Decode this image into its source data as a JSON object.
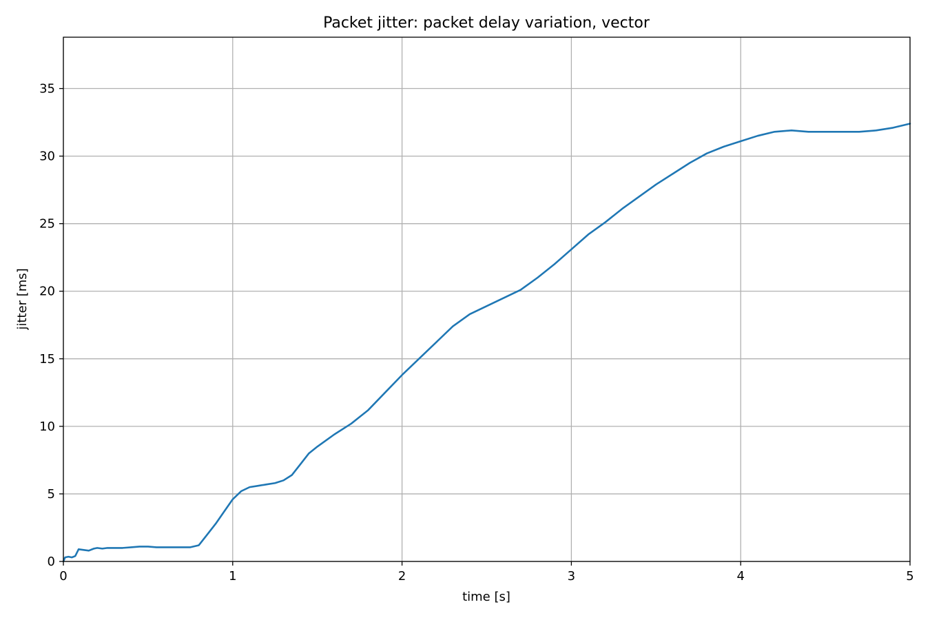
{
  "chart_data": {
    "type": "line",
    "title": "Packet jitter: packet delay variation, vector",
    "xlabel": "time [s]",
    "ylabel": "jitter [ms]",
    "xlim": [
      0,
      5
    ],
    "ylim": [
      0,
      38.8
    ],
    "xticks": [
      0,
      1,
      2,
      3,
      4,
      5
    ],
    "yticks": [
      0,
      5,
      10,
      15,
      20,
      25,
      30,
      35
    ],
    "xtick_labels": [
      "0",
      "1",
      "2",
      "3",
      "4",
      "5"
    ],
    "ytick_labels": [
      "0",
      "5",
      "10",
      "15",
      "20",
      "25",
      "30",
      "35"
    ],
    "grid": true,
    "line_color": "#1f77b4",
    "series": [
      {
        "x": [
          0,
          0.01,
          0.03,
          0.05,
          0.07,
          0.09,
          0.12,
          0.15,
          0.18,
          0.2,
          0.23,
          0.26,
          0.3,
          0.35,
          0.4,
          0.45,
          0.5,
          0.55,
          0.6,
          0.65,
          0.7,
          0.75,
          0.8,
          0.85,
          0.9,
          0.95,
          1.0,
          1.05,
          1.1,
          1.15,
          1.2,
          1.25,
          1.3,
          1.35,
          1.4,
          1.45,
          1.5,
          1.6,
          1.7,
          1.75,
          1.8,
          1.9,
          2.0,
          2.1,
          2.2,
          2.3,
          2.4,
          2.5,
          2.6,
          2.7,
          2.8,
          2.9,
          3.0,
          3.1,
          3.2,
          3.3,
          3.4,
          3.5,
          3.6,
          3.7,
          3.8,
          3.9,
          4.0,
          4.1,
          4.2,
          4.3,
          4.4,
          4.5,
          4.6,
          4.7,
          4.8,
          4.9,
          5.0
        ],
        "y": [
          0.0,
          0.3,
          0.35,
          0.3,
          0.4,
          0.9,
          0.85,
          0.8,
          0.95,
          1.0,
          0.95,
          1.0,
          1.0,
          1.0,
          1.05,
          1.1,
          1.1,
          1.05,
          1.05,
          1.05,
          1.05,
          1.05,
          1.2,
          2.0,
          2.8,
          3.7,
          4.6,
          5.2,
          5.5,
          5.6,
          5.7,
          5.8,
          6.0,
          6.4,
          7.2,
          8.0,
          8.5,
          9.4,
          10.2,
          10.7,
          11.2,
          12.5,
          13.8,
          15.0,
          16.2,
          17.4,
          18.3,
          18.9,
          19.5,
          20.1,
          21.0,
          22.0,
          23.1,
          24.2,
          25.1,
          26.1,
          27.0,
          27.9,
          28.7,
          29.5,
          30.2,
          30.7,
          31.1,
          31.5,
          31.8,
          31.9,
          31.8,
          31.8,
          31.8,
          31.8,
          31.9,
          32.1,
          32.4
        ]
      }
    ]
  }
}
